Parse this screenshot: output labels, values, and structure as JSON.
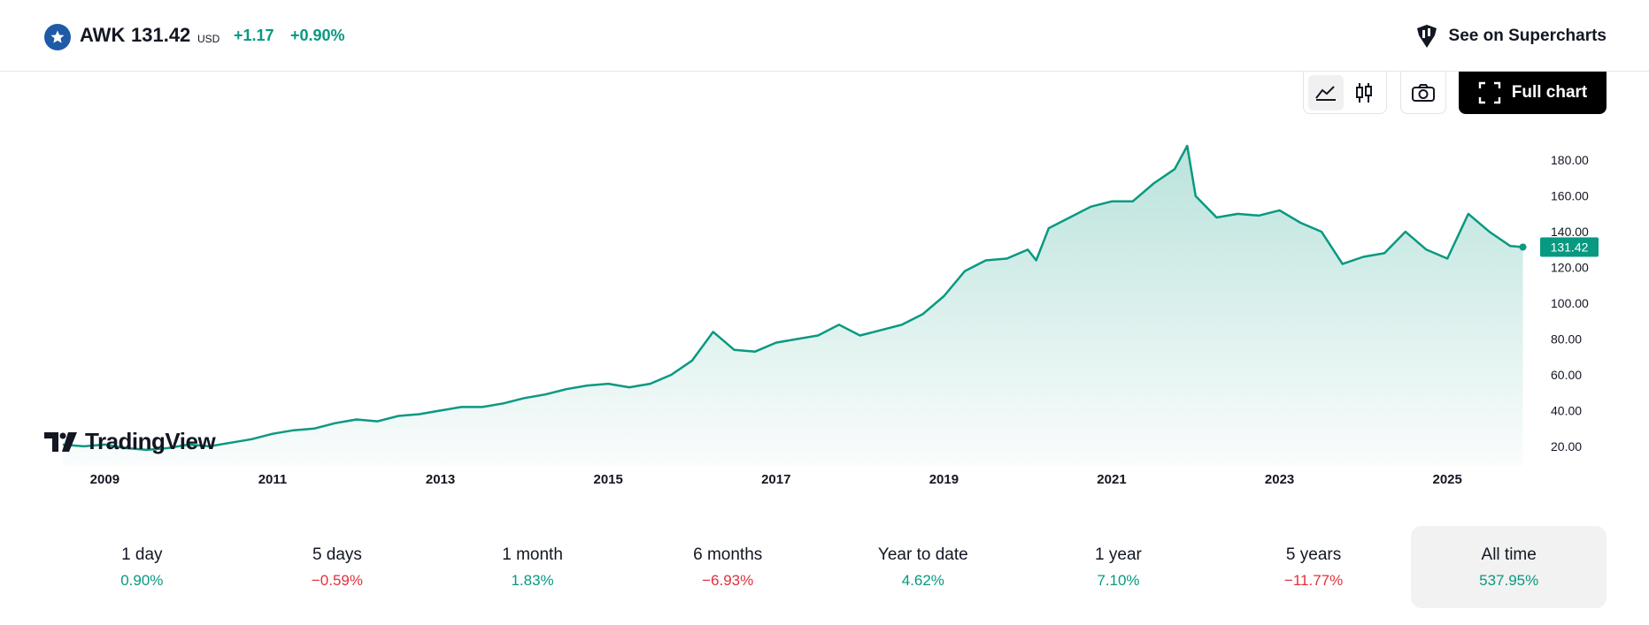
{
  "header": {
    "ticker": "AWK",
    "price": "131.42",
    "currency": "USD",
    "change": "+1.17",
    "change_pct": "+0.90%",
    "supercharts_label": "See on Supercharts",
    "logo_icon": "star-icon"
  },
  "toolbar": {
    "line_icon": "area-chart-icon",
    "candle_icon": "candlestick-icon",
    "camera_icon": "camera-icon",
    "fullchart_label": "Full chart"
  },
  "chart_data": {
    "type": "area",
    "x": [
      2008.5,
      2008.75,
      2009.0,
      2009.25,
      2009.5,
      2009.75,
      2010.0,
      2010.25,
      2010.5,
      2010.75,
      2011.0,
      2011.25,
      2011.5,
      2011.75,
      2012.0,
      2012.25,
      2012.5,
      2012.75,
      2013.0,
      2013.25,
      2013.5,
      2013.75,
      2014.0,
      2014.25,
      2014.5,
      2014.75,
      2015.0,
      2015.25,
      2015.5,
      2015.75,
      2016.0,
      2016.25,
      2016.5,
      2016.75,
      2017.0,
      2017.25,
      2017.5,
      2017.75,
      2018.0,
      2018.25,
      2018.5,
      2018.75,
      2019.0,
      2019.25,
      2019.5,
      2019.75,
      2020.0,
      2020.1,
      2020.25,
      2020.5,
      2020.75,
      2021.0,
      2021.25,
      2021.5,
      2021.75,
      2021.9,
      2022.0,
      2022.25,
      2022.5,
      2022.75,
      2023.0,
      2023.25,
      2023.5,
      2023.75,
      2024.0,
      2024.25,
      2024.5,
      2024.75,
      2025.0,
      2025.25,
      2025.5,
      2025.75,
      2025.9
    ],
    "y": [
      21,
      20,
      21,
      19,
      18,
      19,
      21,
      20,
      22,
      24,
      27,
      29,
      30,
      33,
      35,
      34,
      37,
      38,
      40,
      42,
      42,
      44,
      47,
      49,
      52,
      54,
      55,
      53,
      55,
      60,
      68,
      84,
      74,
      73,
      78,
      80,
      82,
      88,
      82,
      85,
      88,
      94,
      104,
      118,
      124,
      125,
      130,
      124,
      142,
      148,
      154,
      157,
      157,
      167,
      175,
      188,
      160,
      148,
      150,
      149,
      152,
      145,
      140,
      122,
      126,
      128,
      140,
      130,
      125,
      150,
      140,
      132,
      131.42
    ],
    "xticks": [
      "2009",
      "2011",
      "2013",
      "2015",
      "2017",
      "2019",
      "2021",
      "2023",
      "2025"
    ],
    "yticks": [
      "180.00",
      "160.00",
      "140.00",
      "120.00",
      "100.00",
      "80.00",
      "60.00",
      "40.00",
      "20.00"
    ],
    "xlim": [
      2008.3,
      2026.0
    ],
    "ylim": [
      15,
      190
    ],
    "last_label": "131.42",
    "line_color": "#089981",
    "fill_color": "#089981"
  },
  "branding": {
    "logo_text": "TradingView"
  },
  "periods": [
    {
      "label": "1 day",
      "value": "0.90%",
      "dir": "pos"
    },
    {
      "label": "5 days",
      "value": "−0.59%",
      "dir": "neg"
    },
    {
      "label": "1 month",
      "value": "1.83%",
      "dir": "pos"
    },
    {
      "label": "6 months",
      "value": "−6.93%",
      "dir": "neg"
    },
    {
      "label": "Year to date",
      "value": "4.62%",
      "dir": "pos"
    },
    {
      "label": "1 year",
      "value": "7.10%",
      "dir": "pos"
    },
    {
      "label": "5 years",
      "value": "−11.77%",
      "dir": "neg"
    },
    {
      "label": "All time",
      "value": "537.95%",
      "dir": "pos"
    }
  ]
}
